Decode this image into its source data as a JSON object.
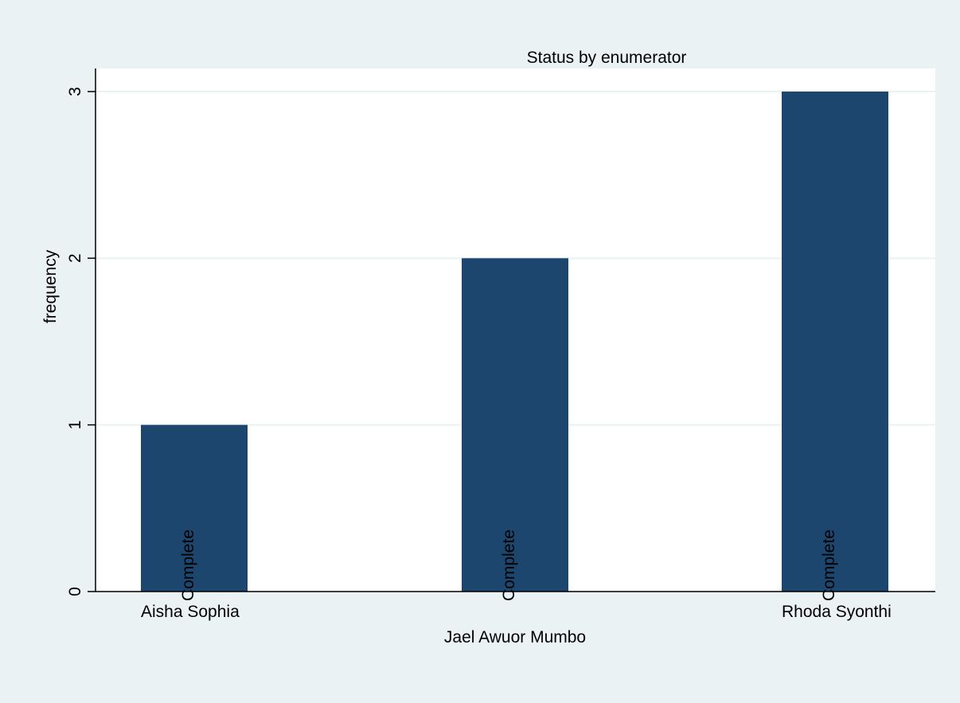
{
  "chart_data": {
    "type": "bar",
    "title": "Status by enumerator",
    "xlabel": "",
    "ylabel": "frequency",
    "ylim": [
      0,
      3
    ],
    "yticks": [
      0,
      1,
      2,
      3
    ],
    "grid": true,
    "categories": [
      "Aisha Sophia",
      "Jael Awuor Mumbo",
      "Rhoda Syonthi"
    ],
    "values": [
      1,
      2,
      3
    ],
    "bar_labels": [
      "Complete",
      "Complete",
      "Complete"
    ],
    "colors": {
      "bar": "#1c466e",
      "background": "#eaf2f3",
      "plot_area": "#ffffff",
      "grid": "#eaf2f3",
      "axis": "#000000"
    }
  }
}
